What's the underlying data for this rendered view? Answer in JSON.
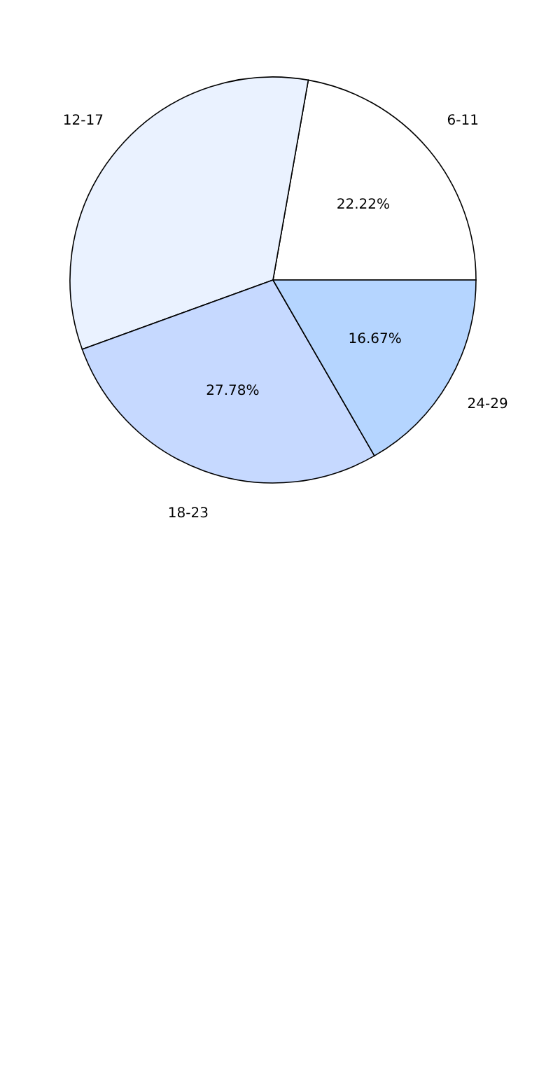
{
  "chart_data": {
    "type": "pie",
    "categories": [
      "6-11",
      "12-17",
      "18-23",
      "24-29"
    ],
    "values": [
      22.22,
      33.33,
      27.78,
      16.67
    ],
    "colors": [
      "#ffffff",
      "#eaf2ff",
      "#c6d9ff",
      "#b5d5ff"
    ],
    "value_labels": [
      "22.22%",
      null,
      "27.78%",
      "16.67%"
    ]
  }
}
